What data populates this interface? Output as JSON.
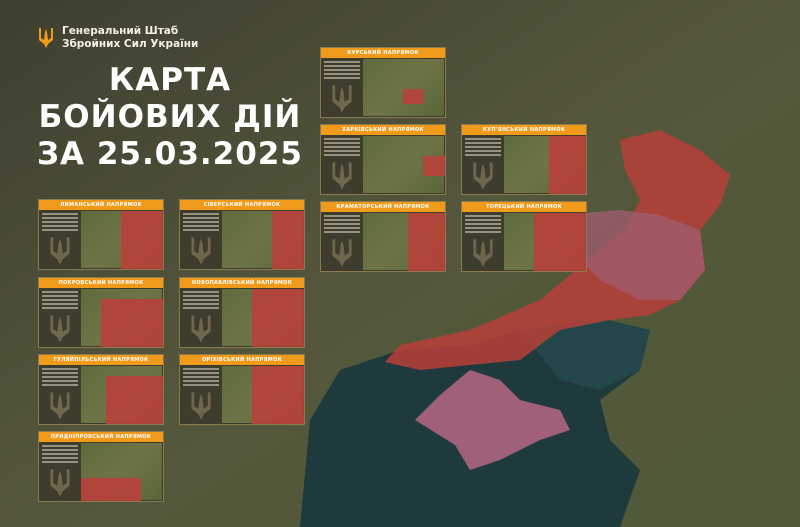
{
  "header": {
    "org_line1": "Генеральний Штаб",
    "org_line2": "Збройних Сил України",
    "title_line1": "КАРТА",
    "title_line2": "БОЙОВИХ ДІЙ",
    "title_line3": "ЗА 25.03.2025"
  },
  "panels": [
    {
      "title": "КУРСЬКИЙ НАПРЯМОК"
    },
    {
      "title": "ХАРКІВСЬКИЙ НАПРЯМОК"
    },
    {
      "title": "КУП'ЯНСЬКИЙ НАПРЯМОК"
    },
    {
      "title": "КРАМАТОРСЬКИЙ НАПРЯМОК"
    },
    {
      "title": "ТОРЕЦЬКИЙ НАПРЯМОК"
    },
    {
      "title": "ЛИМАНСЬКИЙ НАПРЯМОК"
    },
    {
      "title": "СІВЕРСЬКИЙ НАПРЯМОК"
    },
    {
      "title": "ПОКРОВСЬКИЙ НАПРЯМОК"
    },
    {
      "title": "НОВОПАВЛІВСЬКИЙ НАПРЯМОК"
    },
    {
      "title": "ГУЛЯЙПІЛЬСЬКИЙ НАПРЯМОК"
    },
    {
      "title": "ОРІХІВСЬКИЙ НАПРЯМОК"
    },
    {
      "title": "ПРИДНІПРОВСЬКИЙ НАПРЯМОК"
    }
  ],
  "colors": {
    "accent": "#f09a1c",
    "occupied": "#b8403a",
    "crimea": "#a0607a",
    "sea": "#1f3a3c"
  }
}
